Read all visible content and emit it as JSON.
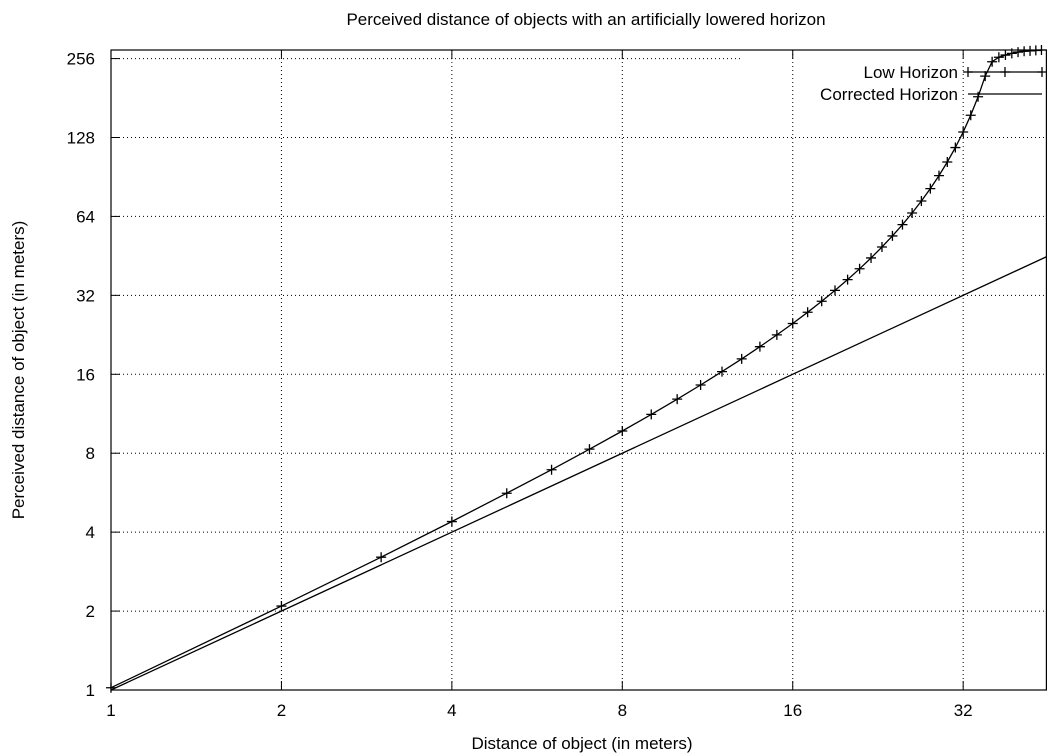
{
  "chart_data": {
    "type": "line",
    "title": "Perceived distance of objects with an artificially lowered horizon",
    "xlabel": "Distance of object (in meters)",
    "ylabel": "Perceived distance of object (in meters)",
    "x_scale": "log2",
    "y_scale": "log2",
    "xlim": [
      1,
      45
    ],
    "ylim": [
      1,
      276
    ],
    "x_ticks": [
      1,
      2,
      4,
      8,
      16,
      32
    ],
    "x_tick_labels": [
      "1",
      "2",
      "4",
      "8",
      "16",
      "32"
    ],
    "y_ticks": [
      1,
      2,
      4,
      8,
      16,
      32,
      64,
      128,
      256
    ],
    "y_tick_labels": [
      "1",
      "2",
      "4",
      "8",
      "16",
      "32",
      "64",
      "128",
      "256"
    ],
    "grid": true,
    "legend_position": "top-right",
    "series": [
      {
        "name": "Low Horizon",
        "style": "line with + markers",
        "color": "#000000",
        "x": [
          1,
          2,
          3,
          4,
          5,
          6,
          7,
          8,
          9,
          10,
          11,
          12,
          13,
          14,
          15,
          16,
          17,
          18,
          19,
          20,
          21,
          22,
          23,
          24,
          25,
          26,
          27,
          28,
          29,
          30,
          31,
          32,
          33,
          34,
          35,
          36,
          37,
          38,
          39,
          40,
          41,
          42,
          43,
          44
        ],
        "y": [
          1.02,
          2.09,
          3.21,
          4.39,
          5.63,
          6.92,
          8.29,
          9.72,
          11.25,
          12.86,
          14.56,
          16.38,
          18.32,
          20.39,
          22.61,
          25.0,
          27.58,
          30.38,
          33.43,
          36.75,
          40.41,
          44.44,
          48.92,
          53.93,
          59.57,
          65.96,
          73.28,
          81.71,
          91.56,
          103.21,
          117.19,
          134.29,
          155.65,
          183.05,
          219.39,
          249,
          259,
          264,
          268,
          271,
          273,
          274,
          275,
          276
        ]
      },
      {
        "name": "Corrected Horizon",
        "style": "line",
        "color": "#000000",
        "x": [
          1,
          45
        ],
        "y": [
          1,
          45
        ]
      }
    ]
  }
}
